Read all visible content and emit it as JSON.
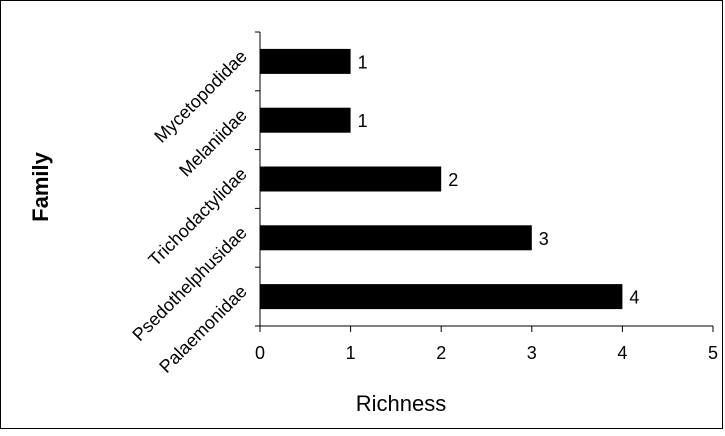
{
  "chart_data": {
    "type": "bar",
    "orientation": "horizontal",
    "categories": [
      "Palaemonidae",
      "Psedothelphusidae",
      "Trichodactylidae",
      "Melaniidae",
      "Mycetopodidae"
    ],
    "values": [
      4,
      3,
      2,
      1,
      1
    ],
    "data_labels": [
      "4",
      "3",
      "2",
      "1",
      "1"
    ],
    "title": "",
    "xlabel": "Richness",
    "ylabel": "Family",
    "xlim": [
      0,
      5
    ],
    "x_ticks": [
      "0",
      "1",
      "2",
      "3",
      "4",
      "5"
    ],
    "grid": false,
    "legend": "none",
    "bar_color": "#000000"
  }
}
